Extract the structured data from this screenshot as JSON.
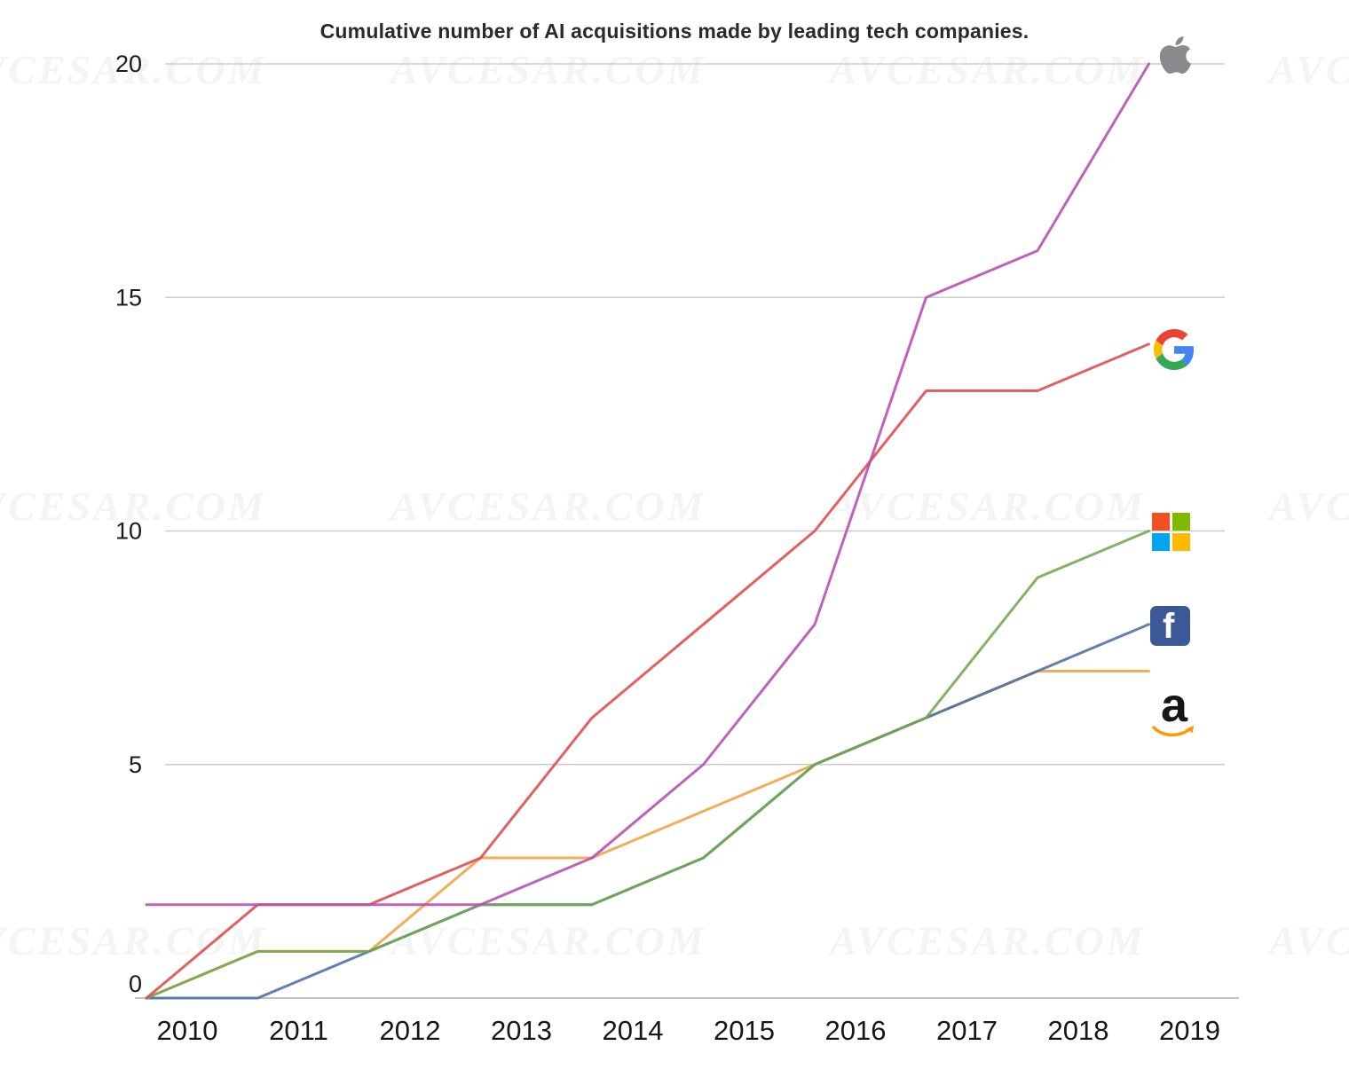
{
  "chart_data": {
    "type": "line",
    "title": "Cumulative number of AI acquisitions made by leading tech companies.",
    "categories": [
      "2010",
      "2011",
      "2012",
      "2013",
      "2014",
      "2015",
      "2016",
      "2017",
      "2018",
      "2019"
    ],
    "series": [
      {
        "name": "Apple",
        "color": "#b44db2",
        "values": [
          2,
          2,
          2,
          2,
          3,
          5,
          8,
          15,
          16,
          20
        ]
      },
      {
        "name": "Google",
        "color": "#dd4b4b",
        "values": [
          0,
          2,
          2,
          3,
          6,
          8,
          10,
          13,
          13,
          14
        ]
      },
      {
        "name": "Microsoft",
        "color": "#71a84f",
        "values": [
          0,
          1,
          1,
          2,
          2,
          3,
          5,
          6,
          9,
          10
        ]
      },
      {
        "name": "Facebook",
        "color": "#4a6fa5",
        "values": [
          0,
          0,
          1,
          2,
          2,
          3,
          5,
          6,
          7,
          8
        ]
      },
      {
        "name": "Amazon",
        "color": "#f0a33f",
        "values": [
          0,
          1,
          1,
          3,
          3,
          4,
          5,
          6,
          7,
          7
        ]
      }
    ],
    "y_ticks": [
      0,
      5,
      10,
      15,
      20
    ],
    "ylim": [
      0,
      20
    ],
    "grid": true,
    "legend_position": "right-logos"
  },
  "legend": {
    "entries": [
      "Apple",
      "Google",
      "Microsoft",
      "Facebook",
      "Amazon"
    ]
  },
  "logo_glyphs": {
    "facebook_letter": "f",
    "amazon_letter": "a"
  },
  "logo_colors": {
    "apple_gray": "#8a8a8e",
    "google_red": "#EA4335",
    "google_blue": "#4285F4",
    "google_green": "#34A853",
    "google_yellow": "#FBBC05",
    "microsoft_red": "#F25022",
    "microsoft_green": "#7FBA00",
    "microsoft_blue": "#00A4EF",
    "microsoft_yellow": "#FFB900",
    "facebook_blue": "#3b5998",
    "amazon_orange": "#ff9900"
  },
  "watermark": {
    "text": "AVCESAR.COM"
  }
}
